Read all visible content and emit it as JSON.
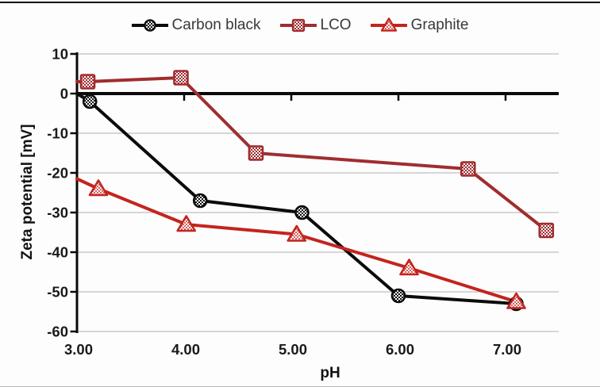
{
  "page": {
    "background": "#fdfdfd",
    "top_border_color": "#0d0d0d",
    "bottom_border_color": "#b8b8b8"
  },
  "chart_data": {
    "type": "line",
    "title": "",
    "xlabel": "pH",
    "ylabel": "Zeta potential [mV]",
    "xlim": [
      3.0,
      7.5
    ],
    "ylim": [
      -60,
      10
    ],
    "grid": "horizontal-only",
    "gridline_color": "#bfbfbf",
    "axis_color": "#0a0a0a",
    "axis_cross_y": 0,
    "tick_label_color": "#1a1a1a",
    "legend_position": "top-center",
    "x_ticks": [
      {
        "value": 3,
        "label": "3.00"
      },
      {
        "value": 4,
        "label": "4.00"
      },
      {
        "value": 5,
        "label": "5.00"
      },
      {
        "value": 6,
        "label": "6.00"
      },
      {
        "value": 7,
        "label": "7.00"
      }
    ],
    "y_ticks": [
      {
        "value": 10,
        "label": "10"
      },
      {
        "value": 0,
        "label": "0"
      },
      {
        "value": -10,
        "label": "-10"
      },
      {
        "value": -20,
        "label": "-20"
      },
      {
        "value": -30,
        "label": "-30"
      },
      {
        "value": -40,
        "label": "-40"
      },
      {
        "value": -50,
        "label": "-50"
      },
      {
        "value": -60,
        "label": "-60"
      }
    ],
    "series": [
      {
        "name": "Carbon black",
        "color": "#0b0b0b",
        "marker": "circle",
        "marker_fill": "checkerboard",
        "line_start": {
          "x": 3.0,
          "y": 0
        },
        "points": [
          [
            3.12,
            -2
          ],
          [
            4.15,
            -27
          ],
          [
            5.1,
            -30
          ],
          [
            6.0,
            -51
          ],
          [
            7.1,
            -53
          ]
        ]
      },
      {
        "name": "LCO",
        "color": "#a02d2f",
        "marker": "square",
        "marker_fill": "checkerboard",
        "line_start": {
          "x": 3.0,
          "y": 3
        },
        "points": [
          [
            3.1,
            3
          ],
          [
            3.97,
            4
          ],
          [
            4.67,
            -15
          ],
          [
            6.65,
            -19
          ],
          [
            7.38,
            -34.5
          ]
        ]
      },
      {
        "name": "Graphite",
        "color": "#c4241e",
        "marker": "triangle",
        "marker_fill": "dots",
        "line_start": {
          "x": 3.0,
          "y": -21.5
        },
        "points": [
          [
            3.2,
            -24
          ],
          [
            4.02,
            -33
          ],
          [
            5.05,
            -35.5
          ],
          [
            6.1,
            -44
          ],
          [
            7.1,
            -52.5
          ]
        ]
      }
    ]
  }
}
